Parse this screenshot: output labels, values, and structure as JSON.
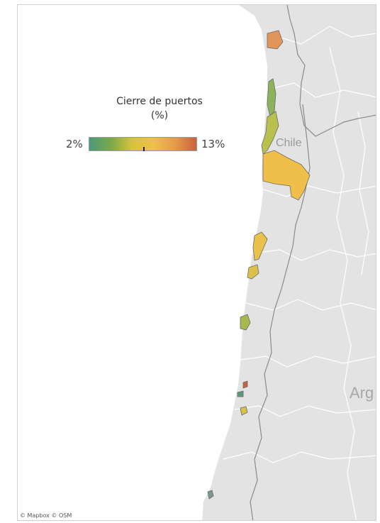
{
  "legend": {
    "title_line1": "Cierre de puertos",
    "title_line2": "(%)",
    "min_label": "2%",
    "max_label": "13%",
    "scale_min": 2,
    "scale_max": 13,
    "marker_value": 7.5,
    "colors": [
      "#4a9a78",
      "#7aa84a",
      "#d6c43a",
      "#efbf4a",
      "#e59a4a",
      "#c9623e"
    ]
  },
  "labels": {
    "chile": "Chile",
    "argentina": "Arg"
  },
  "attribution": "© Mapbox © OSM",
  "regions": [
    {
      "id": "north-tip",
      "color": "#e2955a",
      "value": 11.5
    },
    {
      "id": "coast-north",
      "color": "#8db35a",
      "value": 5
    },
    {
      "id": "coast-mid",
      "color": "#b9c04e",
      "value": 6.5
    },
    {
      "id": "big-block",
      "color": "#efbf4a",
      "value": 9
    },
    {
      "id": "central-1",
      "color": "#e8c24a",
      "value": 8.5
    },
    {
      "id": "central-2",
      "color": "#dcc04a",
      "value": 8
    },
    {
      "id": "south-1",
      "color": "#a9b84c",
      "value": 6
    },
    {
      "id": "south-red",
      "color": "#c9623e",
      "value": 13
    },
    {
      "id": "south-green",
      "color": "#5a9a7a",
      "value": 3
    },
    {
      "id": "south-yellow",
      "color": "#d9c14a",
      "value": 8
    },
    {
      "id": "far-south",
      "color": "#7a9a8a",
      "value": 3.5
    }
  ],
  "colors": {
    "land": "#e3e3e3",
    "ocean": "#ffffff",
    "border": "#ffffff",
    "national_border": "#8a8a8a"
  }
}
